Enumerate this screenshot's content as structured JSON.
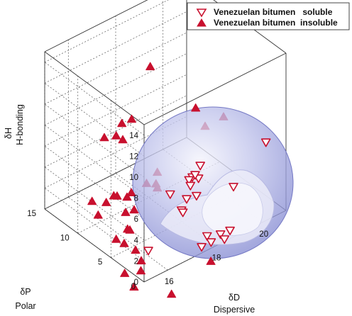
{
  "chart_data": {
    "type": "scatter",
    "projection": "3d",
    "title": "",
    "axes": {
      "dD": {
        "label": "δD",
        "sublabel": "Dispersive",
        "ticks": [
          16,
          18,
          20
        ],
        "range": [
          15,
          21
        ]
      },
      "dP": {
        "label": "δP",
        "sublabel": "Polar",
        "ticks": [
          0,
          5,
          10,
          15
        ],
        "range": [
          0,
          15
        ]
      },
      "dH": {
        "label": "δH",
        "sublabel": "H-bonding",
        "ticks": [
          0,
          2,
          4,
          6,
          8,
          10,
          12,
          14
        ],
        "range": [
          0,
          15
        ]
      }
    },
    "grid": true,
    "legend": {
      "placement": "top-right"
    },
    "sphere": {
      "shown": true,
      "color": "#8a8fd6"
    },
    "series": [
      {
        "name": "Venezuelan bitumen   soluble",
        "marker": "triangle-down-open",
        "color": "#c8102e",
        "points": [
          {
            "dD": 17.6,
            "dP": 2.0,
            "dH": 6.1
          },
          {
            "dD": 17.6,
            "dP": 2.5,
            "dH": 5.6
          },
          {
            "dD": 18.0,
            "dP": 2.5,
            "dH": 5.3
          },
          {
            "dD": 18.0,
            "dP": 3.0,
            "dH": 5.4
          },
          {
            "dD": 17.8,
            "dP": 3.0,
            "dH": 4.6
          },
          {
            "dD": 18.3,
            "dP": 3.3,
            "dH": 5.8
          },
          {
            "dD": 17.0,
            "dP": 3.2,
            "dH": 4.6
          },
          {
            "dD": 17.5,
            "dP": 2.5,
            "dH": 3.9
          },
          {
            "dD": 18.0,
            "dP": 2.8,
            "dH": 3.5
          },
          {
            "dD": 17.2,
            "dP": 2.2,
            "dH": 3.3
          },
          {
            "dD": 17.2,
            "dP": 2.0,
            "dH": 3.2
          },
          {
            "dD": 15.6,
            "dP": 1.5,
            "dH": 1.6
          },
          {
            "dD": 19.2,
            "dP": 1.5,
            "dH": 3.6
          },
          {
            "dD": 20.6,
            "dP": 1.6,
            "dH": 6.2
          },
          {
            "dD": 18.0,
            "dP": 1.2,
            "dH": 0.4
          },
          {
            "dD": 17.6,
            "dP": 0.6,
            "dH": 0.1
          },
          {
            "dD": 18.4,
            "dP": 0.6,
            "dH": 0.4
          },
          {
            "dD": 18.8,
            "dP": 0.6,
            "dH": 0.3
          },
          {
            "dD": 18.4,
            "dP": 0.0,
            "dH": 0.2
          },
          {
            "dD": 18.0,
            "dP": 0.6,
            "dH": 0.1
          }
        ]
      },
      {
        "name": "Venezuelan bitumen  insoluble",
        "marker": "triangle-up-filled",
        "color": "#c8102e",
        "points": [
          {
            "dD": 17.5,
            "dP": 8.0,
            "dH": 14.0
          },
          {
            "dD": 15.6,
            "dP": 5.5,
            "dH": 11.9
          },
          {
            "dD": 16.1,
            "dP": 5.8,
            "dH": 11.6
          },
          {
            "dD": 15.0,
            "dP": 6.0,
            "dH": 11.0
          },
          {
            "dD": 15.5,
            "dP": 5.0,
            "dH": 10.7
          },
          {
            "dD": 15.5,
            "dP": 6.0,
            "dH": 10.6
          },
          {
            "dD": 18.3,
            "dP": 4.0,
            "dH": 11.0
          },
          {
            "dD": 18.7,
            "dP": 4.0,
            "dH": 8.8
          },
          {
            "dD": 19.2,
            "dP": 3.0,
            "dH": 9.6
          },
          {
            "dD": 16.4,
            "dP": 3.0,
            "dH": 7.5
          },
          {
            "dD": 16.0,
            "dP": 3.2,
            "dH": 6.8
          },
          {
            "dD": 16.4,
            "dP": 3.0,
            "dH": 6.0
          },
          {
            "dD": 15.0,
            "dP": 1.5,
            "dH": 6.2
          },
          {
            "dD": 15.3,
            "dP": 3.0,
            "dH": 6.8
          },
          {
            "dD": 16.4,
            "dP": 3.2,
            "dH": 6.3
          },
          {
            "dD": 15.4,
            "dP": 4.0,
            "dH": 5.8
          },
          {
            "dD": 15.4,
            "dP": 5.5,
            "dH": 5.2
          },
          {
            "dD": 15.4,
            "dP": 6.0,
            "dH": 5.0
          },
          {
            "dD": 14.2,
            "dP": 5.0,
            "dH": 6.3
          },
          {
            "dD": 14.8,
            "dP": 5.0,
            "dH": 5.5
          },
          {
            "dD": 14.6,
            "dP": 5.5,
            "dH": 4.3
          },
          {
            "dD": 15.2,
            "dP": 3.5,
            "dH": 4.8
          },
          {
            "dD": 15.0,
            "dP": 2.5,
            "dH": 3.9
          },
          {
            "dD": 15.1,
            "dP": 2.5,
            "dH": 3.7
          },
          {
            "dD": 14.8,
            "dP": 3.5,
            "dH": 2.7
          },
          {
            "dD": 15.0,
            "dP": 3.0,
            "dH": 2.3
          },
          {
            "dD": 15.2,
            "dP": 2.0,
            "dH": 1.9
          },
          {
            "dD": 15.3,
            "dP": 1.5,
            "dH": 1.0
          },
          {
            "dD": 15.2,
            "dP": 1.2,
            "dH": 0.3
          },
          {
            "dD": 14.6,
            "dP": 1.5,
            "dH": 0.6
          },
          {
            "dD": 14.8,
            "dP": 0.8,
            "dH": -0.6
          },
          {
            "dD": 17.6,
            "dP": -0.8,
            "dH": -0.6
          },
          {
            "dD": 15.6,
            "dP": -2.0,
            "dH": -0.9
          }
        ]
      }
    ]
  }
}
